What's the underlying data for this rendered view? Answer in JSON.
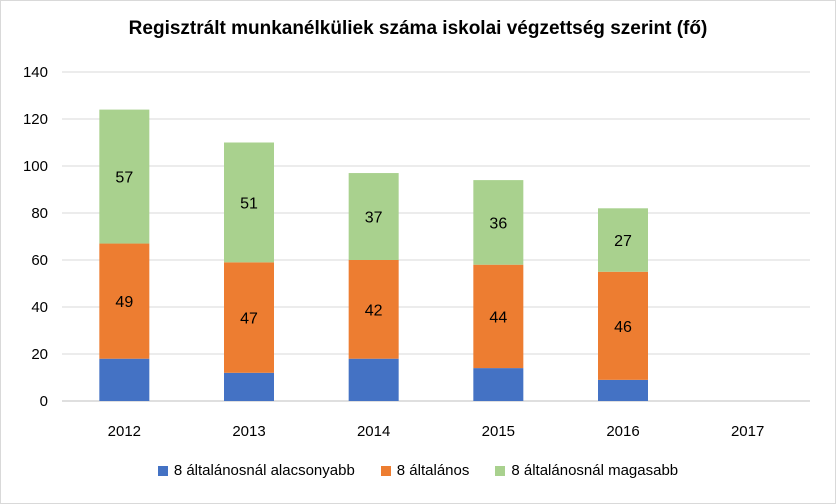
{
  "chart_data": {
    "type": "bar",
    "stacked": true,
    "title": "Regisztrált munkanélküliek száma iskolai végzettség szerint (fő)",
    "categories": [
      "2012",
      "2013",
      "2014",
      "2015",
      "2016",
      "2017"
    ],
    "series": [
      {
        "name": "8 általánosnál alacsonyabb",
        "color": "#4472c4",
        "values": [
          18,
          12,
          18,
          14,
          9,
          null
        ],
        "labels_shown": false
      },
      {
        "name": "8 általános",
        "color": "#ed7d31",
        "values": [
          49,
          47,
          42,
          44,
          46,
          null
        ],
        "labels_shown": true
      },
      {
        "name": "8 általánosnál magasabb",
        "color": "#a9d18e",
        "values": [
          57,
          51,
          37,
          36,
          27,
          null
        ],
        "labels_shown": true
      }
    ],
    "ylim": [
      0,
      140
    ],
    "yticks": [
      0,
      20,
      40,
      60,
      80,
      100,
      120,
      140
    ],
    "grid": true,
    "legend_position": "bottom"
  }
}
